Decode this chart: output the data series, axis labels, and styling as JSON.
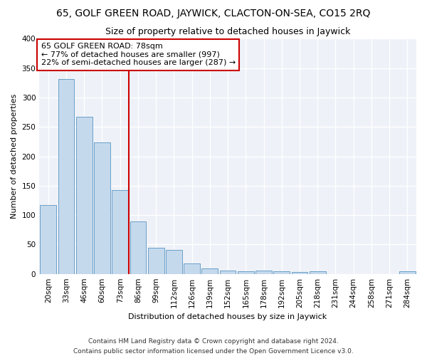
{
  "title": "65, GOLF GREEN ROAD, JAYWICK, CLACTON-ON-SEA, CO15 2RQ",
  "subtitle": "Size of property relative to detached houses in Jaywick",
  "xlabel": "Distribution of detached houses by size in Jaywick",
  "ylabel": "Number of detached properties",
  "categories": [
    "20sqm",
    "33sqm",
    "46sqm",
    "60sqm",
    "73sqm",
    "86sqm",
    "99sqm",
    "112sqm",
    "126sqm",
    "139sqm",
    "152sqm",
    "165sqm",
    "178sqm",
    "192sqm",
    "205sqm",
    "218sqm",
    "231sqm",
    "244sqm",
    "258sqm",
    "271sqm",
    "284sqm"
  ],
  "values": [
    117,
    331,
    267,
    224,
    142,
    89,
    45,
    41,
    18,
    9,
    6,
    5,
    6,
    4,
    3,
    4,
    0,
    0,
    0,
    0,
    4
  ],
  "bar_color": "#c5d9ed",
  "bar_edge_color": "#6a9fc8",
  "vline_x": 4.5,
  "vline_color": "#cc0000",
  "annotation_line1": "65 GOLF GREEN ROAD: 78sqm",
  "annotation_line2": "← 77% of detached houses are smaller (997)",
  "annotation_line3": "22% of semi-detached houses are larger (287) →",
  "ylim": [
    0,
    400
  ],
  "yticks": [
    0,
    50,
    100,
    150,
    200,
    250,
    300,
    350,
    400
  ],
  "footnote1": "Contains HM Land Registry data © Crown copyright and database right 2024.",
  "footnote2": "Contains public sector information licensed under the Open Government Licence v3.0.",
  "title_fontsize": 10,
  "subtitle_fontsize": 9,
  "label_fontsize": 8,
  "tick_fontsize": 7.5,
  "annotation_fontsize": 8,
  "footnote_fontsize": 6.5,
  "bg_color": "#eef2f8"
}
